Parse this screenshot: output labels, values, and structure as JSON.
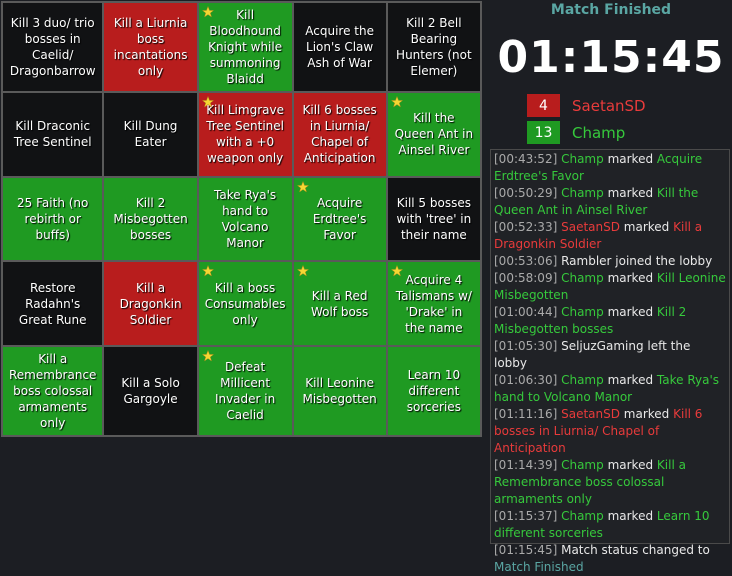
{
  "board": {
    "cells": [
      [
        {
          "text": "Kill 3 duo/ trio bosses in Caelid/ Dragonbarrow",
          "color": "black",
          "star": false
        },
        {
          "text": "Kill a Liurnia boss incantations only",
          "color": "red",
          "star": false
        },
        {
          "text": "Kill Bloodhound Knight while summoning Blaidd",
          "color": "green",
          "star": true
        },
        {
          "text": "Acquire the Lion's Claw Ash of War",
          "color": "black",
          "star": false
        },
        {
          "text": "Kill 2 Bell Bearing Hunters (not Elemer)",
          "color": "black",
          "star": false
        }
      ],
      [
        {
          "text": "Kill Draconic Tree Sentinel",
          "color": "black",
          "star": false
        },
        {
          "text": "Kill Dung Eater",
          "color": "black",
          "star": false
        },
        {
          "text": "Kill Limgrave Tree Sentinel with a +0 weapon only",
          "color": "red",
          "star": true
        },
        {
          "text": "Kill 6 bosses in Liurnia/ Chapel of Anticipation",
          "color": "red",
          "star": false
        },
        {
          "text": "Kill the Queen Ant in Ainsel River",
          "color": "green",
          "star": true
        }
      ],
      [
        {
          "text": "25 Faith (no rebirth or buffs)",
          "color": "green",
          "star": false
        },
        {
          "text": "Kill 2 Misbegotten bosses",
          "color": "green",
          "star": false
        },
        {
          "text": "Take Rya's hand to Volcano Manor",
          "color": "green",
          "star": false
        },
        {
          "text": "Acquire Erdtree's Favor",
          "color": "green",
          "star": true
        },
        {
          "text": "Kill 5 bosses with 'tree' in their name",
          "color": "black",
          "star": false
        }
      ],
      [
        {
          "text": "Restore Radahn's Great Rune",
          "color": "black",
          "star": false
        },
        {
          "text": "Kill a Dragonkin Soldier",
          "color": "red",
          "star": false
        },
        {
          "text": "Kill a boss Consumables only",
          "color": "green",
          "star": true
        },
        {
          "text": "Kill a Red Wolf boss",
          "color": "green",
          "star": true
        },
        {
          "text": "Acquire 4 Talismans w/ 'Drake' in the name",
          "color": "green",
          "star": true
        }
      ],
      [
        {
          "text": "Kill a Remembrance boss colossal armaments only",
          "color": "green",
          "star": false
        },
        {
          "text": "Kill a Solo Gargoyle",
          "color": "black",
          "star": false
        },
        {
          "text": "Defeat Millicent Invader in Caelid",
          "color": "green",
          "star": true
        },
        {
          "text": "Kill Leonine Misbegotten",
          "color": "green",
          "star": false
        },
        {
          "text": "Learn 10 different sorceries",
          "color": "green",
          "star": false
        }
      ]
    ]
  },
  "status": {
    "title": "Match Finished",
    "timer": "01:15:45",
    "players": [
      {
        "score": "4",
        "name": "SaetanSD",
        "color": "red"
      },
      {
        "score": "13",
        "name": "Champ",
        "color": "green"
      }
    ]
  },
  "log": [
    {
      "time": "[00:43:52]",
      "player": "Champ",
      "team": "green",
      "verb": "marked",
      "goal": "Acquire Erdtree's Favor"
    },
    {
      "time": "[00:50:29]",
      "player": "Champ",
      "team": "green",
      "verb": "marked",
      "goal": "Kill the Queen Ant in Ainsel River"
    },
    {
      "time": "[00:52:33]",
      "player": "SaetanSD",
      "team": "red",
      "verb": "marked",
      "goal": "Kill a Dragonkin Soldier"
    },
    {
      "time": "[00:53:06]",
      "text": "Rambler joined the lobby"
    },
    {
      "time": "[00:58:09]",
      "player": "Champ",
      "team": "green",
      "verb": "marked",
      "goal": "Kill Leonine Misbegotten"
    },
    {
      "time": "[01:00:44]",
      "player": "Champ",
      "team": "green",
      "verb": "marked",
      "goal": "Kill 2 Misbegotten bosses"
    },
    {
      "time": "[01:05:30]",
      "text": "SeljuzGaming left the lobby"
    },
    {
      "time": "[01:06:30]",
      "player": "Champ",
      "team": "green",
      "verb": "marked",
      "goal": "Take Rya's hand to Volcano Manor"
    },
    {
      "time": "[01:11:16]",
      "player": "SaetanSD",
      "team": "red",
      "verb": "marked",
      "goal": "Kill 6 bosses in Liurnia/ Chapel of Anticipation"
    },
    {
      "time": "[01:14:39]",
      "player": "Champ",
      "team": "green",
      "verb": "marked",
      "goal": "Kill a Remembrance boss colossal armaments only"
    },
    {
      "time": "[01:15:37]",
      "player": "Champ",
      "team": "green",
      "verb": "marked",
      "goal": "Learn 10 different sorceries"
    },
    {
      "time": "[01:15:45]",
      "text": "Match status changed to",
      "status": "Match Finished"
    }
  ]
}
